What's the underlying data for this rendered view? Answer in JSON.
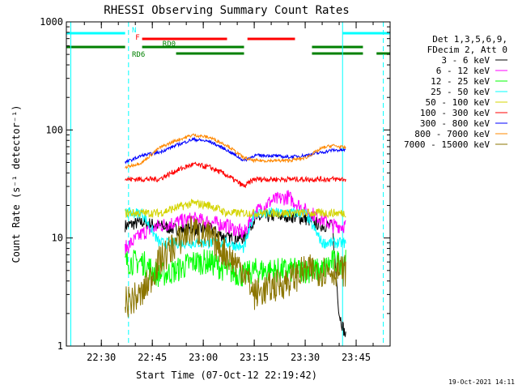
{
  "chart_data": {
    "type": "line",
    "title": "RHESSI Observing Summary Count Rates",
    "xlabel": "Start Time (07-Oct-12 22:19:42)",
    "ylabel": "Count Rate (s⁻¹ detector⁻¹)",
    "y_scale": "log",
    "ylim": [
      1,
      1000
    ],
    "y_ticks": [
      1,
      10,
      100,
      1000
    ],
    "y_tick_labels": [
      "1",
      "10",
      "100",
      "1000"
    ],
    "x_ticks": [
      "22:30",
      "22:45",
      "23:00",
      "23:15",
      "23:30",
      "23:45"
    ],
    "grid": false,
    "legend_position": "right",
    "legend_header": [
      "Det 1,3,5,6,9,",
      "FDecim 2, Att 0"
    ],
    "footer_date": "19-Oct-2021 14:11",
    "colors": {
      "3 - 6 keV": "#000000",
      "6 - 12 keV": "#ff00ff",
      "12 - 25 keV": "#00ff00",
      "25 - 50 keV": "#00ffff",
      "50 - 100 keV": "#d4d400",
      "100 - 300 keV": "#ff0000",
      "300 - 800 keV": "#0000ff",
      "800 - 7000 keV": "#ff8800",
      "7000 - 15000 keV": "#8b7500"
    },
    "series": [
      {
        "name": "3 - 6 keV",
        "x": [
          "22:37",
          "22:42",
          "22:47",
          "22:52",
          "22:57",
          "23:02",
          "23:07",
          "23:12",
          "23:15",
          "23:20",
          "23:25",
          "23:30",
          "23:35",
          "23:38",
          "23:40",
          "23:42"
        ],
        "values": [
          13,
          14,
          13,
          12,
          12,
          12,
          10,
          10,
          15,
          16,
          16,
          15,
          13,
          13,
          2,
          1.2
        ]
      },
      {
        "name": "6 - 12 keV",
        "x": [
          "22:37",
          "22:42",
          "22:47",
          "22:52",
          "22:57",
          "23:02",
          "23:07",
          "23:12",
          "23:15",
          "23:20",
          "23:25",
          "23:30",
          "23:35",
          "23:38",
          "23:42"
        ],
        "values": [
          8,
          11,
          13,
          14,
          15,
          14,
          13,
          11,
          17,
          22,
          24,
          18,
          15,
          13,
          13
        ]
      },
      {
        "name": "12 - 25 keV",
        "x": [
          "22:37",
          "22:42",
          "22:47",
          "22:52",
          "22:57",
          "23:02",
          "23:07",
          "23:12",
          "23:15",
          "23:20",
          "23:25",
          "23:30",
          "23:35",
          "23:38",
          "23:42"
        ],
        "values": [
          6,
          6,
          4.5,
          5,
          6,
          6,
          5,
          4.5,
          5,
          5,
          5,
          5,
          5,
          6,
          6
        ]
      },
      {
        "name": "25 - 50 keV",
        "x": [
          "22:37",
          "22:42",
          "22:47",
          "22:52",
          "22:57",
          "23:02",
          "23:07",
          "23:12",
          "23:15",
          "23:20",
          "23:25",
          "23:30",
          "23:35",
          "23:38",
          "23:42"
        ],
        "values": [
          17,
          17,
          9,
          9,
          9,
          9,
          9,
          8,
          17,
          17,
          17,
          17,
          9,
          9,
          9
        ]
      },
      {
        "name": "50 - 100 keV",
        "x": [
          "22:37",
          "22:42",
          "22:47",
          "22:52",
          "22:57",
          "23:02",
          "23:07",
          "23:12",
          "23:15",
          "23:20",
          "23:25",
          "23:30",
          "23:35",
          "23:38",
          "23:42"
        ],
        "values": [
          17,
          17,
          17,
          19,
          21,
          20,
          17,
          17,
          17,
          17,
          17,
          17,
          17,
          17,
          17
        ]
      },
      {
        "name": "100 - 300 keV",
        "x": [
          "22:37",
          "22:42",
          "22:47",
          "22:52",
          "22:57",
          "23:02",
          "23:07",
          "23:12",
          "23:15",
          "23:20",
          "23:25",
          "23:30",
          "23:35",
          "23:38",
          "23:42"
        ],
        "values": [
          35,
          35,
          35,
          42,
          48,
          45,
          38,
          30,
          35,
          35,
          35,
          35,
          35,
          35,
          35
        ]
      },
      {
        "name": "300 - 800 keV",
        "x": [
          "22:37",
          "22:42",
          "22:47",
          "22:52",
          "22:57",
          "23:02",
          "23:07",
          "23:12",
          "23:15",
          "23:20",
          "23:25",
          "23:30",
          "23:35",
          "23:38",
          "23:42"
        ],
        "values": [
          50,
          58,
          62,
          72,
          82,
          78,
          65,
          52,
          58,
          58,
          56,
          58,
          62,
          65,
          65
        ]
      },
      {
        "name": "800 - 7000 keV",
        "x": [
          "22:37",
          "22:42",
          "22:47",
          "22:52",
          "22:57",
          "23:02",
          "23:07",
          "23:12",
          "23:15",
          "23:20",
          "23:25",
          "23:30",
          "23:35",
          "23:38",
          "23:42"
        ],
        "values": [
          45,
          50,
          68,
          80,
          90,
          85,
          72,
          55,
          52,
          52,
          52,
          55,
          68,
          72,
          68
        ]
      },
      {
        "name": "7000 - 15000 keV",
        "x": [
          "22:37",
          "22:42",
          "22:47",
          "22:52",
          "22:57",
          "23:02",
          "23:07",
          "23:12",
          "23:15",
          "23:20",
          "23:25",
          "23:30",
          "23:35",
          "23:38",
          "23:42"
        ],
        "values": [
          2.5,
          3,
          6,
          9,
          12,
          10,
          7,
          5,
          3,
          3.5,
          4,
          5,
          5,
          5,
          5
        ]
      }
    ],
    "status_bars": [
      {
        "label": "N",
        "color": "#00ffff",
        "segments": [
          [
            "22:19:42",
            "22:37"
          ],
          [
            "23:41",
            "23:55"
          ]
        ]
      },
      {
        "label": "F",
        "color": "#ff0000",
        "segments": [
          [
            "22:42",
            "23:07"
          ],
          [
            "23:13",
            "23:27"
          ]
        ]
      },
      {
        "label": "RD0",
        "color": "#008000",
        "segments": [
          [
            "22:19:42",
            "22:37"
          ],
          [
            "22:42",
            "23:12"
          ],
          [
            "23:32",
            "23:47"
          ]
        ]
      },
      {
        "label": "RD6",
        "color": "#008000",
        "segments": [
          [
            "22:52",
            "23:12"
          ],
          [
            "23:32",
            "23:47"
          ],
          [
            "23:51",
            "23:55"
          ]
        ]
      }
    ],
    "vertical_lines": [
      {
        "x": "22:21",
        "style": "solid",
        "color": "#00ffff"
      },
      {
        "x": "22:38",
        "style": "dashed",
        "color": "#00ffff"
      },
      {
        "x": "23:41",
        "style": "solid",
        "color": "#00ffff"
      },
      {
        "x": "23:53",
        "style": "dashed",
        "color": "#00ffff"
      }
    ]
  }
}
